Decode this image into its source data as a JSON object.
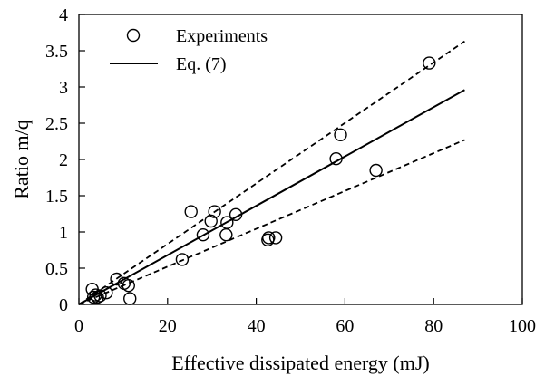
{
  "chart_data": {
    "type": "scatter",
    "xlabel": "Effective dissipated energy (mJ)",
    "ylabel": "Ratio m/q",
    "xlim": [
      0,
      100
    ],
    "ylim": [
      0,
      4
    ],
    "x_ticks": [
      0,
      20,
      40,
      60,
      80,
      100
    ],
    "y_ticks": [
      0,
      0.5,
      1,
      1.5,
      2,
      2.5,
      3,
      3.5,
      4
    ],
    "x_tick_labels": [
      "0",
      "20",
      "40",
      "60",
      "80",
      "100"
    ],
    "y_tick_labels": [
      "0",
      "0.5",
      "1",
      "1.5",
      "2",
      "2.5",
      "3",
      "3.5",
      "4"
    ],
    "grid": false,
    "legend_position": "top-left",
    "series": [
      {
        "name": "Experiments",
        "kind": "scatter",
        "marker": "open-circle",
        "x": [
          3.0,
          3.3,
          3.8,
          4.2,
          4.8,
          6.2,
          8.5,
          10.2,
          11.2,
          11.5,
          23.3,
          25.3,
          28.0,
          29.8,
          30.6,
          33.2,
          33.4,
          35.4,
          42.6,
          42.8,
          44.4,
          58.0,
          59.0,
          67.0,
          79.0
        ],
        "y": [
          0.21,
          0.1,
          0.13,
          0.1,
          0.12,
          0.16,
          0.35,
          0.29,
          0.26,
          0.08,
          0.62,
          1.28,
          0.96,
          1.15,
          1.28,
          0.96,
          1.13,
          1.24,
          0.89,
          0.92,
          0.92,
          2.01,
          2.34,
          1.85,
          3.33
        ]
      },
      {
        "name": "Eq. (7)",
        "kind": "line",
        "style": "solid",
        "x": [
          0,
          87
        ],
        "y": [
          0,
          2.96
        ]
      },
      {
        "kind": "line",
        "style": "dashed",
        "x": [
          0,
          87
        ],
        "y": [
          0,
          3.63
        ]
      },
      {
        "kind": "line",
        "style": "dashed",
        "x": [
          0,
          87
        ],
        "y": [
          0,
          2.27
        ]
      }
    ],
    "colors": {
      "ink": "#000000",
      "background": "#ffffff"
    }
  }
}
